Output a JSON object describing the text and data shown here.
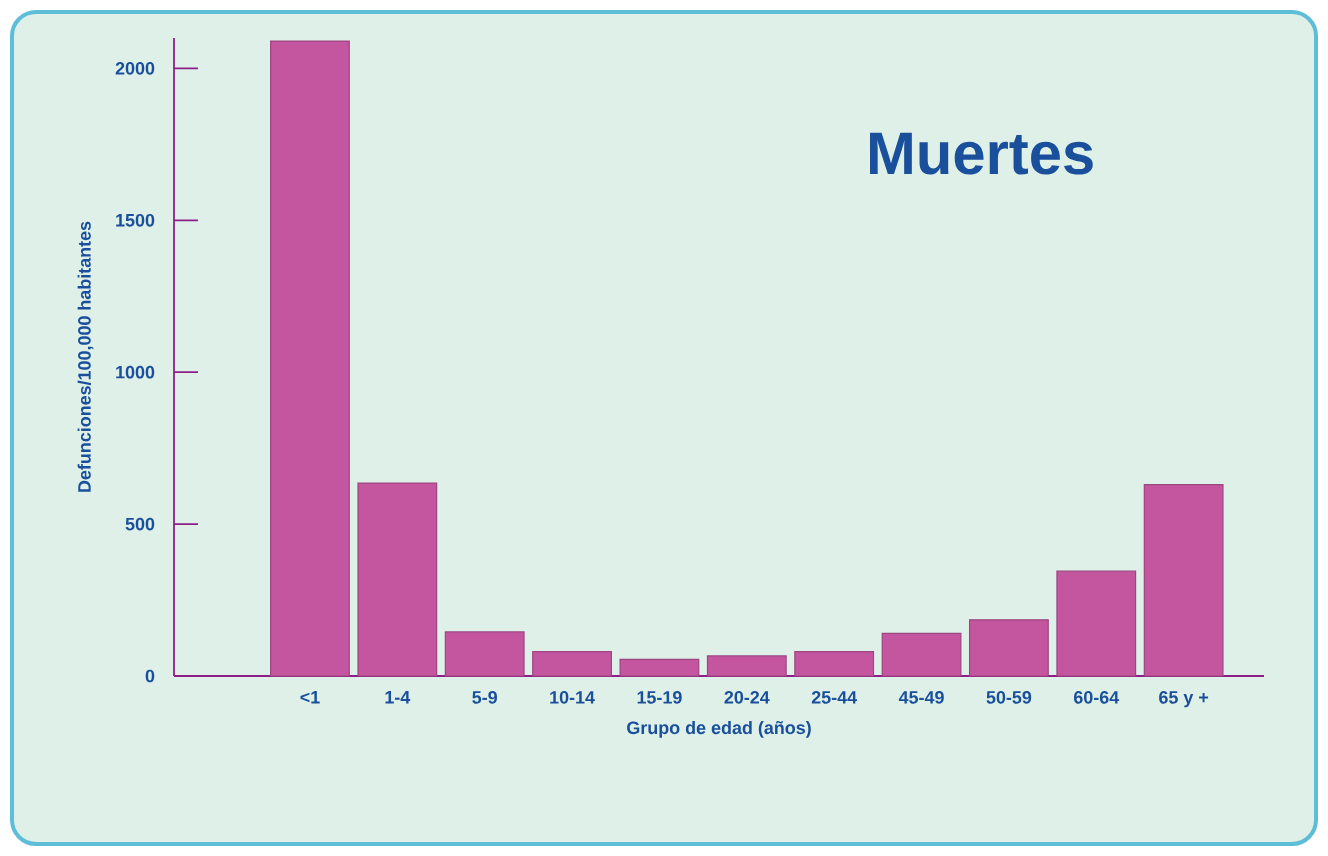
{
  "chart_data": {
    "type": "bar",
    "title": "Muertes",
    "xlabel": "Grupo de edad (años)",
    "ylabel": "Defunciones/100,000 habitantes",
    "categories": [
      "<1",
      "1-4",
      "5-9",
      "10-14",
      "15-19",
      "20-24",
      "25-44",
      "45-49",
      "50-59",
      "60-64",
      "65 y +"
    ],
    "values": [
      2090,
      635,
      145,
      80,
      55,
      66,
      80,
      140,
      185,
      345,
      630
    ],
    "color": "#c4569f",
    "ylim": [
      0,
      2100
    ],
    "yticks": [
      0,
      500,
      1000,
      1500,
      2000
    ]
  }
}
